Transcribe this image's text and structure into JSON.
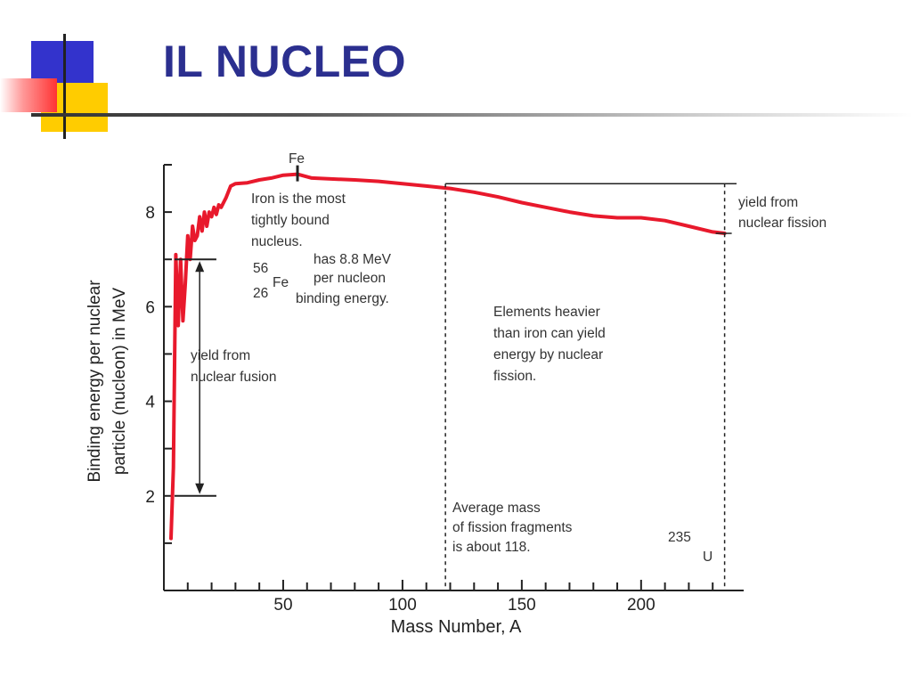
{
  "slide": {
    "title": "IL NUCLEO",
    "accent_blue": "#3333cc",
    "accent_yellow": "#ffcc00",
    "accent_red": "#ff3333",
    "title_color": "#2b2f8f"
  },
  "chart_data": {
    "type": "line",
    "title": "",
    "xlabel": "Mass Number, A",
    "ylabel": "Binding energy per nuclear particle (nucleon) in MeV",
    "xlim": [
      0,
      240
    ],
    "ylim": [
      0,
      9
    ],
    "xticks": [
      50,
      100,
      150,
      200
    ],
    "yticks": [
      2,
      4,
      6,
      8
    ],
    "line_color": "#e8192c",
    "series": [
      {
        "name": "",
        "x": [
          3,
          4,
          5,
          6,
          7,
          8,
          9,
          10,
          11,
          12,
          13,
          14,
          15,
          16,
          17,
          18,
          19,
          20,
          21,
          22,
          23,
          24,
          26,
          28,
          30,
          35,
          40,
          45,
          50,
          56,
          62,
          70,
          80,
          90,
          100,
          110,
          120,
          130,
          140,
          150,
          160,
          170,
          180,
          190,
          200,
          210,
          220,
          230,
          235
        ],
        "y": [
          1.1,
          2.6,
          7.1,
          5.6,
          7.0,
          5.7,
          6.5,
          7.5,
          7.0,
          7.7,
          7.4,
          7.5,
          7.9,
          7.6,
          8.0,
          7.7,
          8.0,
          7.9,
          8.1,
          7.95,
          8.15,
          8.1,
          8.3,
          8.55,
          8.6,
          8.62,
          8.68,
          8.72,
          8.78,
          8.8,
          8.72,
          8.7,
          8.68,
          8.65,
          8.6,
          8.55,
          8.5,
          8.42,
          8.32,
          8.2,
          8.1,
          8.0,
          7.92,
          7.88,
          7.88,
          7.82,
          7.7,
          7.58,
          7.55
        ]
      }
    ],
    "annotations": {
      "fe_marker": "Fe",
      "iron_note": [
        "Iron is the most",
        "tightly bound",
        "nucleus."
      ],
      "fe_mass": "56",
      "fe_atomic": "26",
      "fe_symbol": "Fe",
      "fe_energy_note": [
        "has 8.8 MeV",
        "per nucleon",
        "binding energy."
      ],
      "fusion_note": [
        "yield from",
        "nuclear fusion"
      ],
      "fission_note": [
        "yield from",
        "nuclear fission"
      ],
      "heavier_note": [
        "Elements heavier",
        "than iron can yield",
        "energy by nuclear",
        "fission."
      ],
      "average_note": [
        "Average mass",
        "of fission fragments",
        "is about 118."
      ],
      "u_mass": "235",
      "u_symbol": "U",
      "average_fragment_mass": 118,
      "fusion_range": [
        2,
        7
      ],
      "fission_level": 8.6
    }
  }
}
